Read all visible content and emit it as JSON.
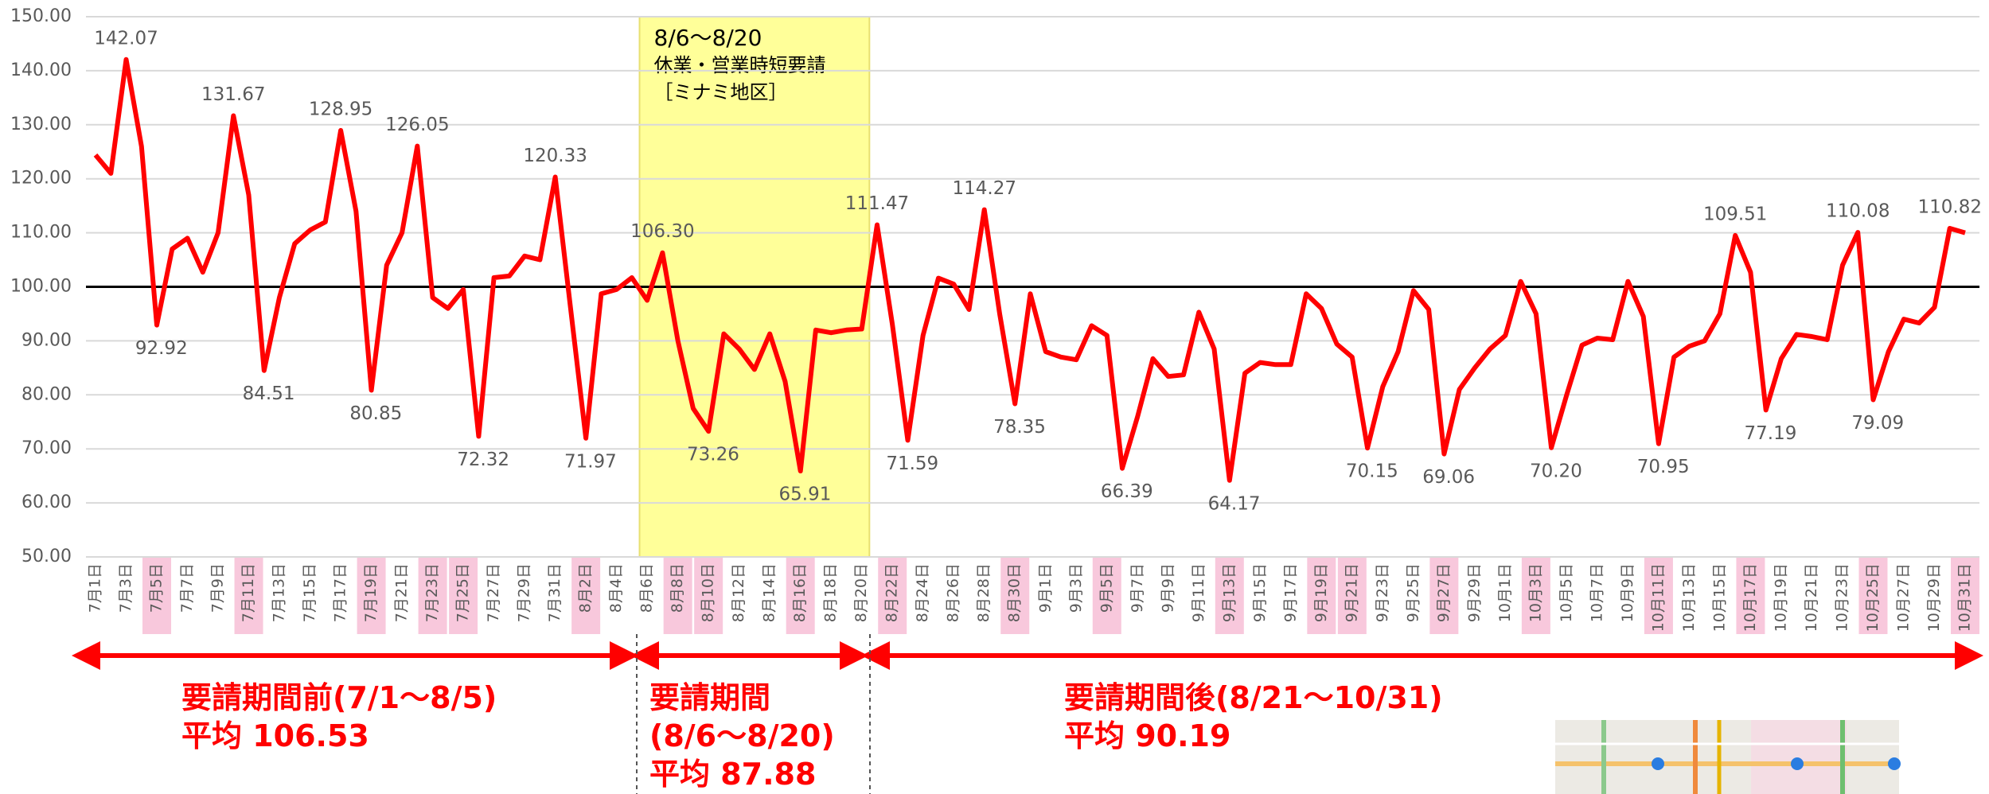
{
  "chart_data": {
    "type": "line",
    "categories": [
      "7月1日",
      null,
      "7月3日",
      null,
      "7月5日",
      null,
      "7月7日",
      null,
      "7月9日",
      null,
      "7月11日",
      null,
      "7月13日",
      null,
      "7月15日",
      null,
      "7月17日",
      null,
      "7月19日",
      null,
      "7月21日",
      null,
      "7月23日",
      null,
      "7月25日",
      null,
      "7月27日",
      null,
      "7月29日",
      null,
      "7月31日",
      null,
      "8月2日",
      null,
      "8月4日",
      null,
      "8月6日",
      null,
      "8月8日",
      null,
      "8月10日",
      null,
      "8月12日",
      null,
      "8月14日",
      null,
      "8月16日",
      null,
      "8月18日",
      null,
      "8月20日",
      null,
      "8月22日",
      null,
      "8月24日",
      null,
      "8月26日",
      null,
      "8月28日",
      null,
      "8月30日",
      null,
      "9月1日",
      null,
      "9月3日",
      null,
      "9月5日",
      null,
      "9月7日",
      null,
      "9月9日",
      null,
      "9月11日",
      null,
      "9月13日",
      null,
      "9月15日",
      null,
      "9月17日",
      null,
      "9月19日",
      null,
      "9月21日",
      null,
      "9月23日",
      null,
      "9月25日",
      null,
      "9月27日",
      null,
      "9月29日",
      null,
      "10月1日",
      null,
      "10月3日",
      null,
      "10月5日",
      null,
      "10月7日",
      null,
      "10月9日",
      null,
      "10月11日",
      null,
      "10月13日",
      null,
      "10月15日",
      null,
      "10月17日",
      null,
      "10月19日",
      null,
      "10月21日",
      null,
      "10月23日",
      null,
      "10月25日",
      null,
      "10月27日",
      null,
      "10月29日",
      null,
      "10月31日"
    ],
    "highlight_categories": [
      4,
      10,
      18,
      22,
      24,
      32,
      38,
      40,
      46,
      52,
      60,
      66,
      74,
      80,
      82,
      88,
      94,
      102,
      108,
      116,
      122
    ],
    "highlight_color": "#f8c8dc",
    "series": [
      {
        "color": "#ff0000",
        "values": [
          124.4,
          121,
          142.07,
          126,
          92.92,
          107,
          109,
          102.7,
          110,
          131.67,
          117,
          84.51,
          98,
          108,
          110.5,
          112,
          128.95,
          114,
          80.85,
          104,
          110,
          126.05,
          98,
          96,
          99.5,
          72.32,
          101.7,
          102,
          105.7,
          105,
          120.33,
          96,
          71.97,
          98.7,
          99.5,
          101.7,
          97.5,
          106.3,
          90,
          77.5,
          73.26,
          91.3,
          88.5,
          84.7,
          91.3,
          82.5,
          65.91,
          92,
          91.5,
          92,
          92.2,
          111.47,
          93,
          71.59,
          91,
          101.6,
          100.5,
          95.8,
          114.27,
          95,
          78.35,
          98.7,
          88,
          87,
          86.5,
          92.8,
          91,
          66.39,
          76,
          86.7,
          83.4,
          83.7,
          95.3,
          88.5,
          64.17,
          84,
          86,
          85.6,
          85.6,
          98.7,
          96,
          89.4,
          87,
          70.15,
          81.5,
          88,
          99.3,
          95.8,
          69.06,
          81,
          85,
          88.5,
          91,
          101,
          95,
          70.2,
          80,
          89.2,
          90.5,
          90.2,
          101,
          94.5,
          70.95,
          87,
          89,
          90,
          95,
          109.51,
          102.7,
          77.19,
          86.7,
          91.2,
          90.8,
          90.2,
          104,
          110.08,
          79.09,
          88,
          94,
          93.3,
          96.2,
          110.82,
          110
        ],
        "value_labels": [
          null,
          null,
          "142.07",
          null,
          "92.92",
          null,
          null,
          null,
          null,
          "131.67",
          null,
          "84.51",
          null,
          null,
          null,
          null,
          "128.95",
          null,
          "80.85",
          null,
          null,
          "126.05",
          null,
          null,
          null,
          "72.32",
          null,
          null,
          null,
          null,
          "120.33",
          null,
          "71.97",
          null,
          null,
          null,
          null,
          "106.30",
          null,
          null,
          "73.26",
          null,
          null,
          null,
          null,
          null,
          "65.91",
          null,
          null,
          null,
          null,
          "111.47",
          null,
          "71.59",
          null,
          null,
          null,
          null,
          "114.27",
          null,
          "78.35",
          null,
          null,
          null,
          null,
          null,
          null,
          "66.39",
          null,
          null,
          null,
          null,
          null,
          null,
          "64.17",
          null,
          null,
          null,
          null,
          null,
          null,
          null,
          null,
          "70.15",
          null,
          null,
          null,
          null,
          "69.06",
          null,
          null,
          null,
          null,
          null,
          null,
          "70.20",
          null,
          null,
          null,
          null,
          null,
          null,
          "70.95",
          null,
          null,
          null,
          null,
          "109.51",
          null,
          "77.19",
          null,
          null,
          null,
          null,
          null,
          "110.08",
          "79.09",
          null,
          null,
          null,
          null,
          "110.82",
          null
        ]
      }
    ],
    "ylim": [
      50,
      150
    ],
    "yticks": [
      {
        "value": 50,
        "label": "50.00"
      },
      {
        "value": 60,
        "label": "60.00"
      },
      {
        "value": 70,
        "label": "70.00"
      },
      {
        "value": 80,
        "label": "80.00"
      },
      {
        "value": 90,
        "label": "90.00"
      },
      {
        "value": 100,
        "label": "100.00"
      },
      {
        "value": 110,
        "label": "110.00"
      },
      {
        "value": 120,
        "label": "120.00"
      },
      {
        "value": 130,
        "label": "130.00"
      },
      {
        "value": 140,
        "label": "140.00"
      },
      {
        "value": 150,
        "label": "150.00"
      }
    ],
    "grid": true,
    "reference_line": 100,
    "shade": {
      "start": 36,
      "end": 50,
      "color": "#ffff99",
      "labels": [
        "8/6〜8/20",
        "休業・営業時短要請",
        "［ミナミ地区］"
      ]
    },
    "periods": [
      {
        "lines": [
          "要請期間前(7/1〜8/5)",
          "平均 106.53"
        ]
      },
      {
        "lines": [
          "要請期間",
          "(8/6〜8/20)",
          "平均 87.88"
        ]
      },
      {
        "lines": [
          "要請期間後(8/21〜10/31)",
          "平均 90.19"
        ]
      }
    ]
  }
}
